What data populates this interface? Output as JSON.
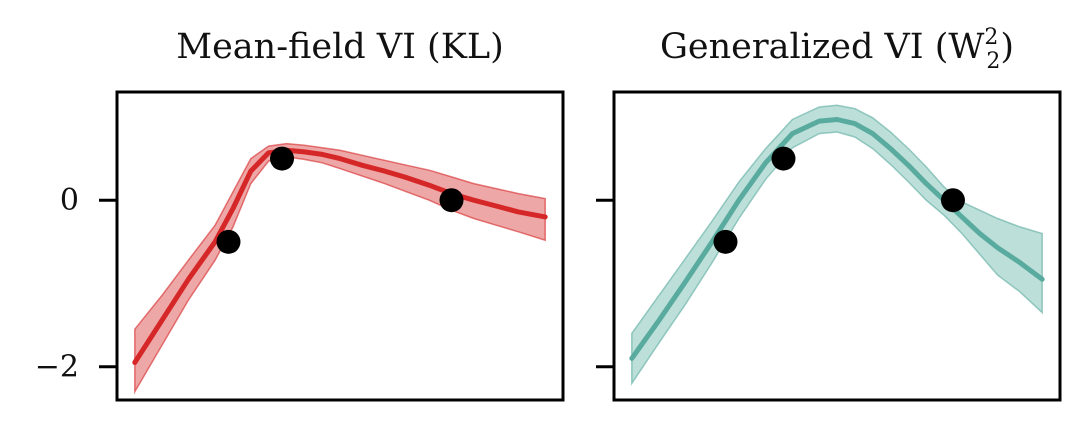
{
  "chart_data": [
    {
      "type": "line",
      "title": "Mean-field VI (KL)",
      "color": "#d62728",
      "band_color": "#e8898a",
      "ylim": [
        -2.4,
        1.3
      ],
      "xlim": [
        0,
        1
      ],
      "yticks": [
        0,
        -2
      ],
      "ytick_labels": [
        "0",
        "−2"
      ],
      "series": [
        {
          "mean_x": [
            0.04,
            0.1,
            0.16,
            0.22,
            0.26,
            0.3,
            0.34,
            0.38,
            0.42,
            0.46,
            0.5,
            0.55,
            0.6,
            0.65,
            0.7,
            0.75,
            0.8,
            0.85,
            0.9,
            0.96
          ],
          "mean_y": [
            -1.95,
            -1.45,
            -0.95,
            -0.5,
            -0.1,
            0.35,
            0.57,
            0.6,
            0.58,
            0.55,
            0.5,
            0.42,
            0.35,
            0.27,
            0.18,
            0.08,
            0.0,
            -0.07,
            -0.14,
            -0.2
          ],
          "upper_y": [
            -1.55,
            -1.15,
            -0.72,
            -0.3,
            0.1,
            0.5,
            0.65,
            0.68,
            0.66,
            0.63,
            0.6,
            0.54,
            0.48,
            0.42,
            0.36,
            0.28,
            0.2,
            0.14,
            0.08,
            0.02
          ],
          "lower_y": [
            -2.3,
            -1.75,
            -1.2,
            -0.72,
            -0.32,
            0.2,
            0.47,
            0.52,
            0.49,
            0.45,
            0.38,
            0.29,
            0.2,
            0.1,
            0.0,
            -0.12,
            -0.22,
            -0.3,
            -0.38,
            -0.48
          ]
        }
      ],
      "points": [
        {
          "x": 0.25,
          "y": -0.5
        },
        {
          "x": 0.37,
          "y": 0.5
        },
        {
          "x": 0.75,
          "y": 0.0
        }
      ]
    },
    {
      "type": "line",
      "title": "Generalized VI (W",
      "title_sup": "2",
      "title_sub": "2",
      "title_end": ")",
      "color": "#5aab9f",
      "band_color": "#a7d4cd",
      "ylim": [
        -2.4,
        1.3
      ],
      "xlim": [
        0,
        1
      ],
      "yticks": [
        0,
        -2
      ],
      "ytick_labels": [
        "",
        ""
      ],
      "series": [
        {
          "mean_x": [
            0.04,
            0.1,
            0.16,
            0.22,
            0.28,
            0.34,
            0.4,
            0.46,
            0.5,
            0.54,
            0.58,
            0.62,
            0.66,
            0.7,
            0.74,
            0.78,
            0.82,
            0.86,
            0.91,
            0.96
          ],
          "mean_y": [
            -1.9,
            -1.45,
            -0.98,
            -0.5,
            0.0,
            0.45,
            0.8,
            0.95,
            0.97,
            0.92,
            0.8,
            0.62,
            0.42,
            0.2,
            0.0,
            -0.2,
            -0.4,
            -0.57,
            -0.75,
            -0.95
          ],
          "upper_y": [
            -1.6,
            -1.15,
            -0.7,
            -0.25,
            0.22,
            0.62,
            0.97,
            1.12,
            1.14,
            1.1,
            0.99,
            0.82,
            0.62,
            0.4,
            0.16,
            -0.02,
            -0.12,
            -0.22,
            -0.32,
            -0.4
          ],
          "lower_y": [
            -2.2,
            -1.72,
            -1.25,
            -0.75,
            -0.22,
            0.25,
            0.63,
            0.8,
            0.82,
            0.76,
            0.62,
            0.43,
            0.22,
            0.0,
            -0.18,
            -0.4,
            -0.65,
            -0.9,
            -1.1,
            -1.35
          ]
        }
      ],
      "points": [
        {
          "x": 0.25,
          "y": -0.5
        },
        {
          "x": 0.38,
          "y": 0.5
        },
        {
          "x": 0.76,
          "y": 0.0
        }
      ]
    }
  ]
}
